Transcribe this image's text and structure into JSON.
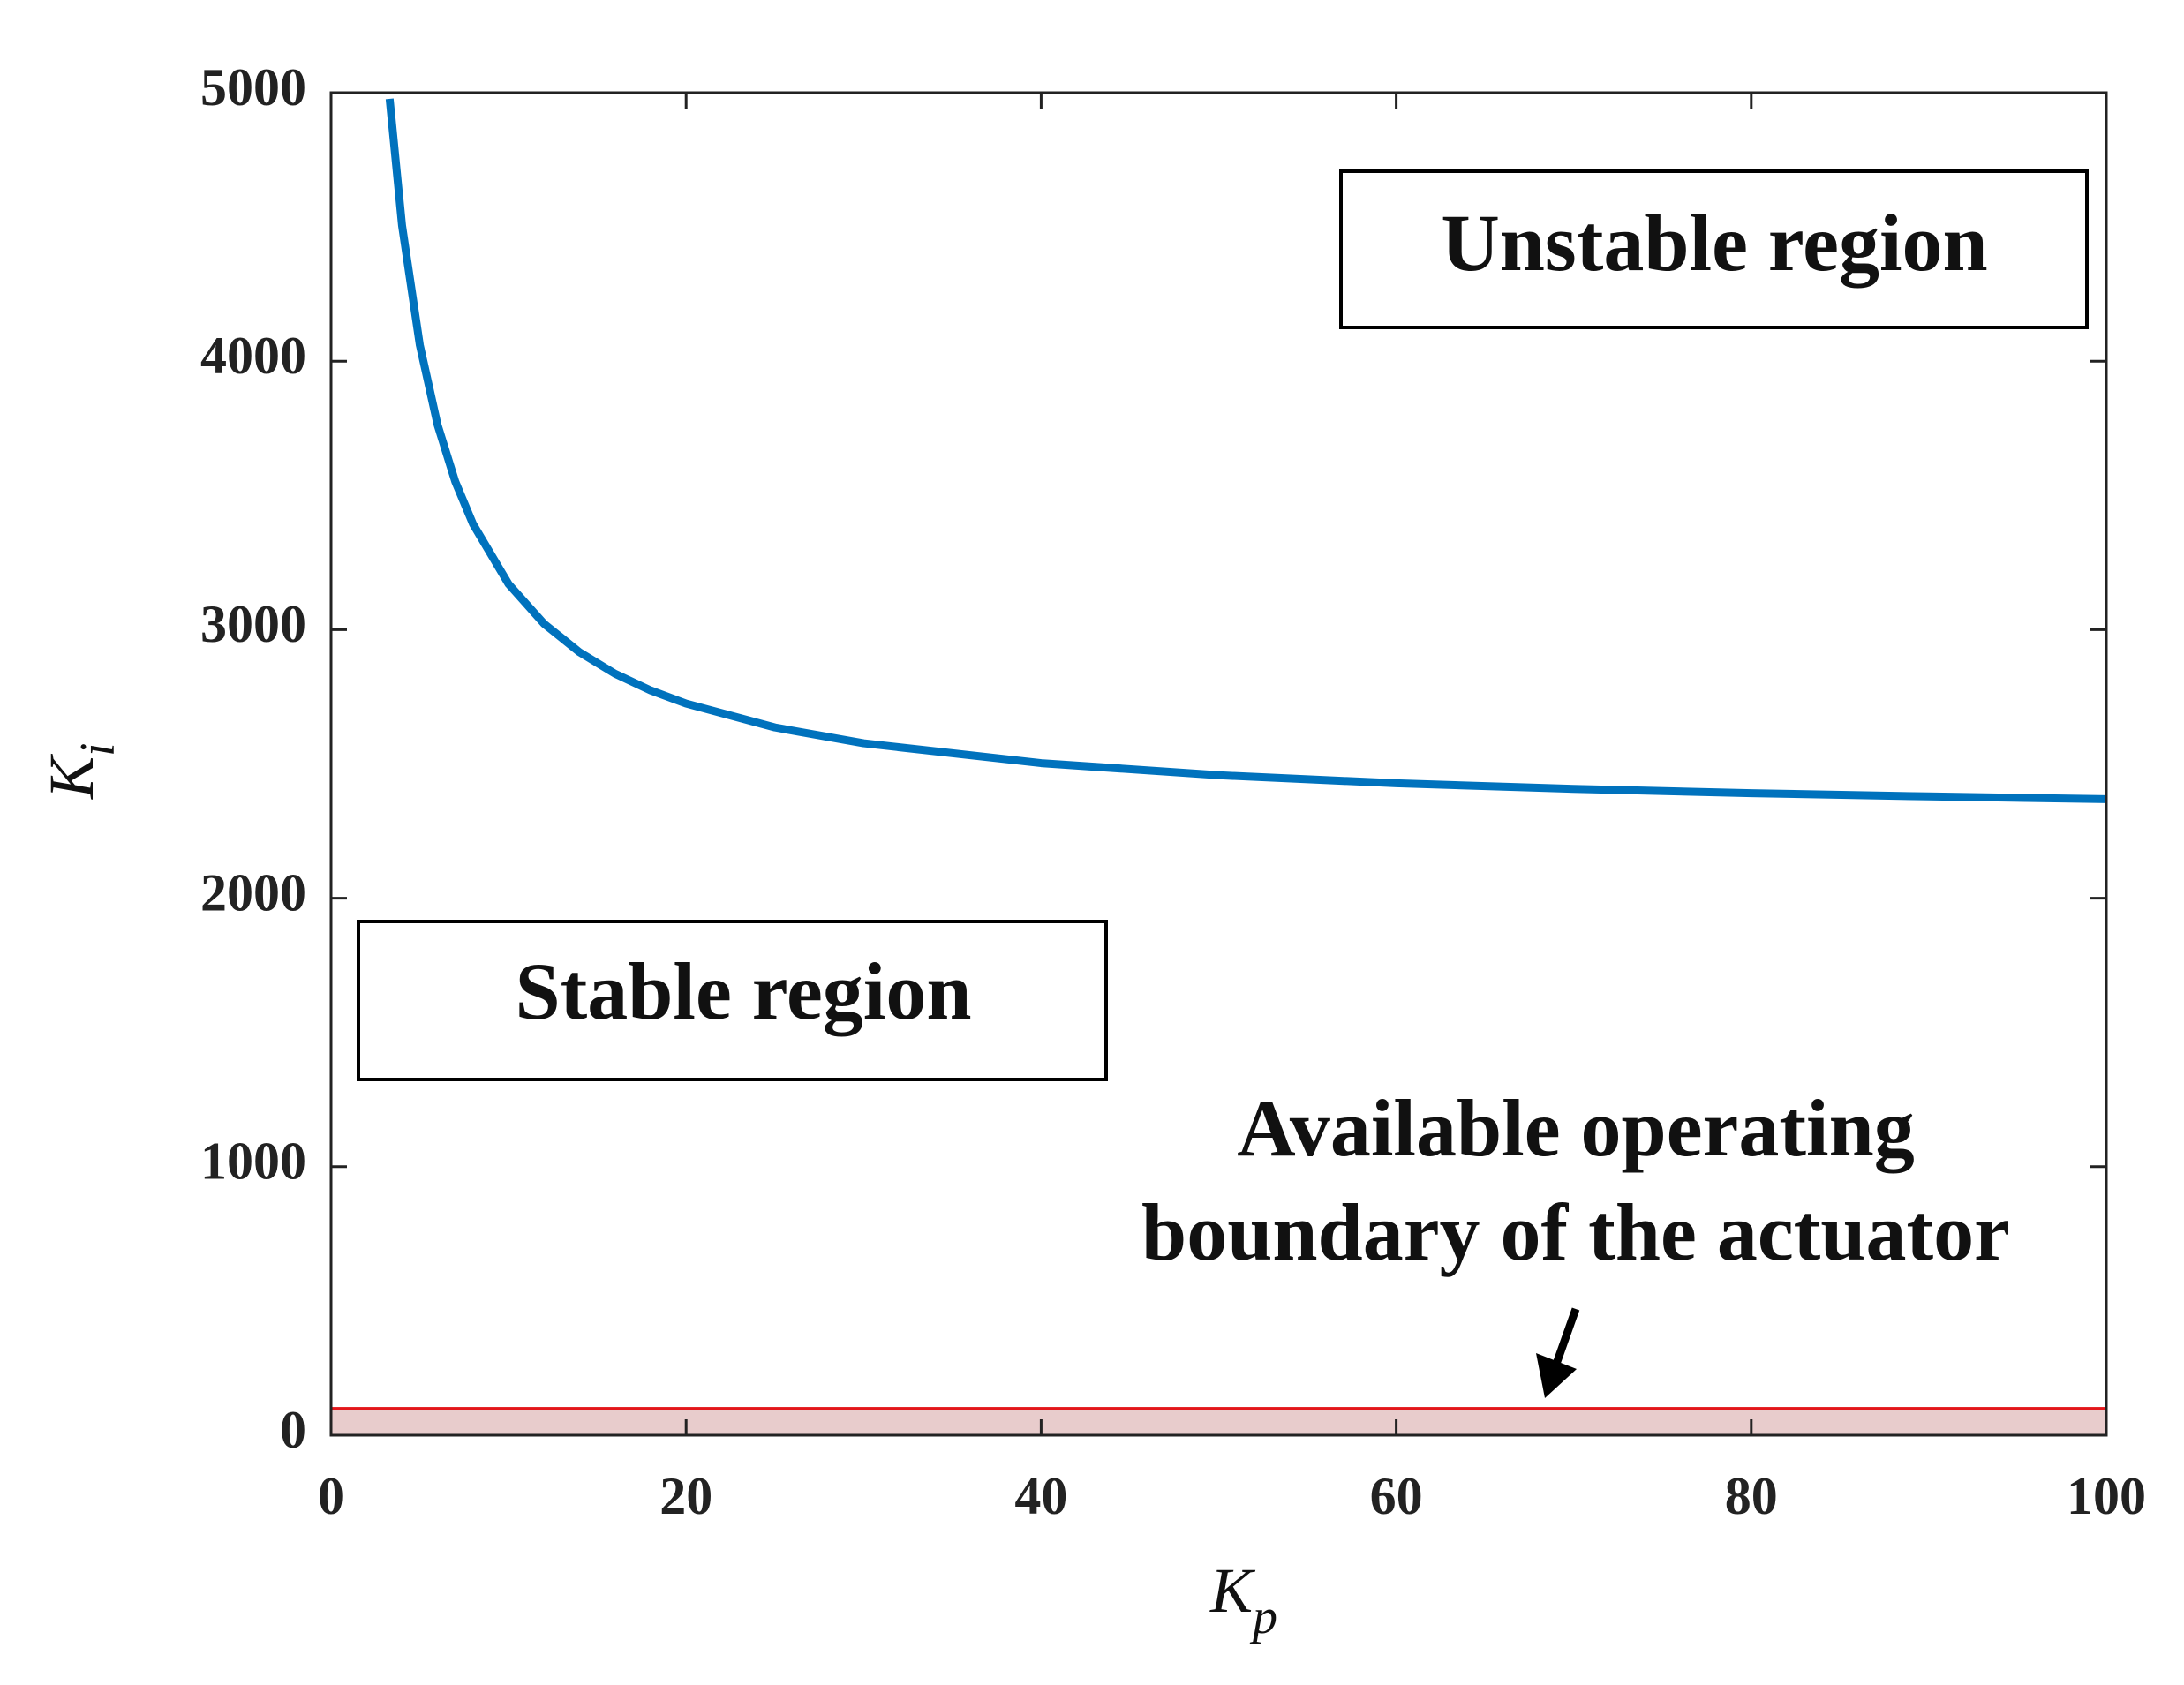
{
  "chart_data": {
    "type": "line",
    "x_label": "K",
    "x_label_sub": "p",
    "y_label": "K",
    "y_label_sub": "i",
    "x": [
      3.3,
      4,
      5,
      6,
      7,
      8,
      10,
      12,
      14,
      16,
      18,
      20,
      25,
      30,
      40,
      50,
      60,
      70,
      80,
      90,
      100
    ],
    "series": [
      {
        "color": "#0072bd",
        "values": [
          4977,
          4505,
          4060,
          3763,
          3551,
          3393,
          3170,
          3022,
          2916,
          2836,
          2774,
          2725,
          2636,
          2577,
          2503,
          2458,
          2428,
          2407,
          2391,
          2379,
          2369
        ]
      }
    ],
    "xlim": [
      0,
      100
    ],
    "ylim": [
      0,
      5000
    ],
    "xticks": [
      0,
      20,
      40,
      60,
      80,
      100
    ],
    "yticks": [
      0,
      1000,
      2000,
      3000,
      4000,
      5000
    ],
    "shaded_region": {
      "x": [
        0,
        100
      ],
      "y": [
        0,
        100
      ],
      "fill": "#e8cccc",
      "edge": "#e3161b"
    },
    "annotations": [
      {
        "text": "Unstable region"
      },
      {
        "text": "Stable region"
      },
      {
        "lines": [
          "Available operating",
          "boundary of the actuator"
        ]
      }
    ]
  }
}
